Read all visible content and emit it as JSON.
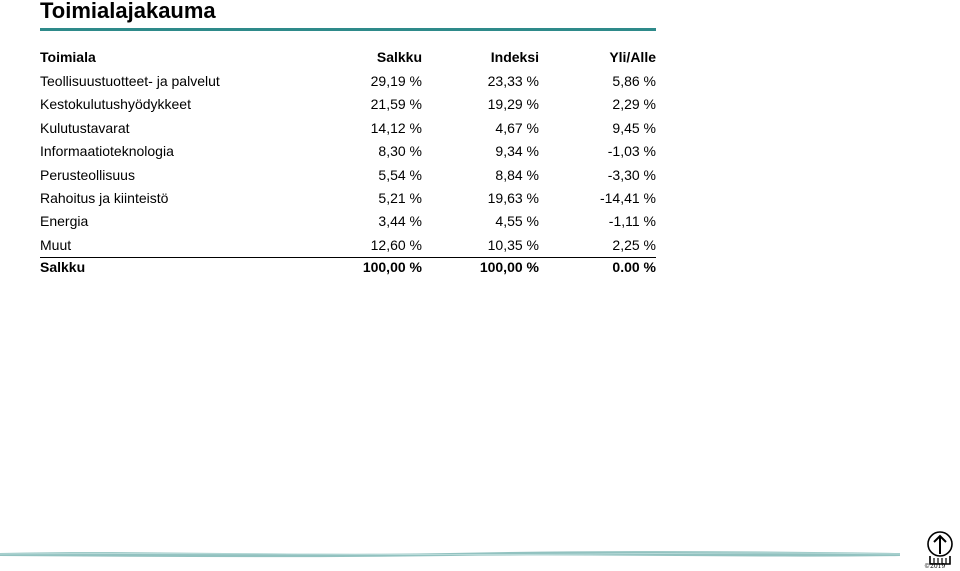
{
  "title": "Toimialajakauma",
  "colors": {
    "accent_rule": "#2e8a8a",
    "footer_band": "#7fb7b5"
  },
  "table": {
    "headers": {
      "sector": "Toimiala",
      "portfolio": "Salkku",
      "index": "Indeksi",
      "over_under": "Yli/Alle"
    },
    "rows": [
      {
        "sector": "Teollisuustuotteet- ja palvelut",
        "portfolio": "29,19 %",
        "index": "23,33 %",
        "over_under": "5,86 %"
      },
      {
        "sector": "Kestokulutushyödykkeet",
        "portfolio": "21,59 %",
        "index": "19,29 %",
        "over_under": "2,29 %"
      },
      {
        "sector": "Kulutustavarat",
        "portfolio": "14,12 %",
        "index": "4,67 %",
        "over_under": "9,45 %"
      },
      {
        "sector": "Informaatioteknologia",
        "portfolio": "8,30 %",
        "index": "9,34 %",
        "over_under": "-1,03 %"
      },
      {
        "sector": "Perusteollisuus",
        "portfolio": "5,54 %",
        "index": "8,84 %",
        "over_under": "-3,30 %"
      },
      {
        "sector": "Rahoitus ja kiinteistö",
        "portfolio": "5,21 %",
        "index": "19,63 %",
        "over_under": "-14,41 %"
      },
      {
        "sector": "Energia",
        "portfolio": "3,44 %",
        "index": "4,55 %",
        "over_under": "-1,11 %"
      },
      {
        "sector": "Muut",
        "portfolio": "12,60 %",
        "index": "10,35 %",
        "over_under": "2,25 %"
      }
    ],
    "total": {
      "sector": "Salkku",
      "portfolio": "100,00 %",
      "index": "100,00 %",
      "over_under": "0.00 %"
    }
  },
  "footer": {
    "logo_icon": "seal-logo-icon",
    "logo_text": "©2019"
  }
}
